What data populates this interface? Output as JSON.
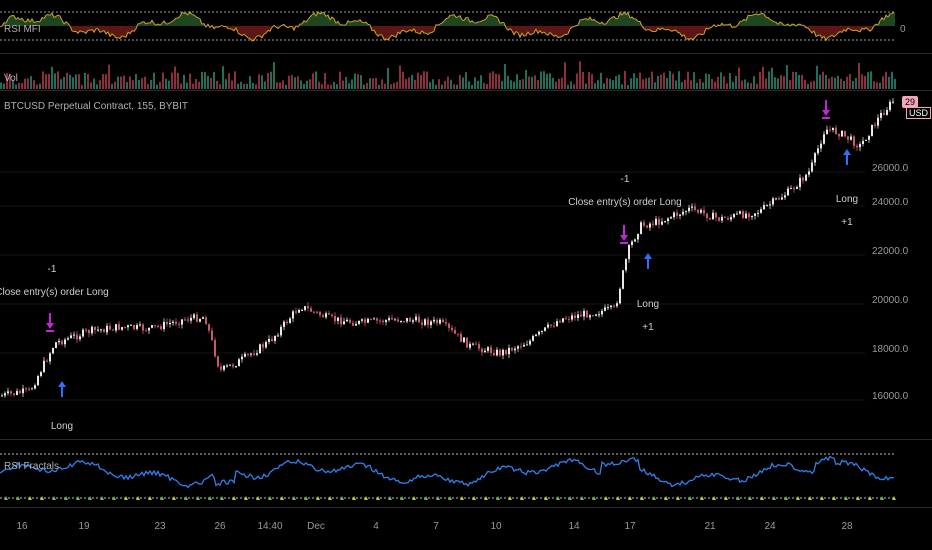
{
  "panes": {
    "rsi_mfi": {
      "label": "RSI MFI",
      "axis_value": "0"
    },
    "volume": {
      "label": "Vol"
    },
    "price": {
      "title": "BTCUSD Perpetual Contract, 155, BYBIT",
      "currency": "USD",
      "last_price_badge": "29",
      "axis_ticks": [
        "26000.0",
        "24000.0",
        "22000.0",
        "20000.0",
        "18000.0",
        "16000.0"
      ]
    },
    "rsi_fractals": {
      "label": "RSI Fractals"
    }
  },
  "annotations": [
    {
      "id": "a1",
      "lines": [
        "-1",
        "Close entry(s) order Long"
      ]
    },
    {
      "id": "a2",
      "lines": [
        "Long"
      ]
    },
    {
      "id": "a3",
      "lines": [
        "-1",
        "Close entry(s) order Long"
      ]
    },
    {
      "id": "a4",
      "lines": [
        "Long",
        "+1"
      ]
    },
    {
      "id": "a5",
      "lines": [
        "Long",
        "+1"
      ]
    }
  ],
  "x_axis": [
    "16",
    "19",
    "23",
    "26",
    "14:40",
    "Dec",
    "4",
    "7",
    "10",
    "14",
    "17",
    "21",
    "24",
    "28"
  ],
  "colors": {
    "up": "#26a69a",
    "down": "#ef5350",
    "candle": "#c85a6a",
    "rsi_line": "#2f80ed",
    "mfi_up": "#4caf50",
    "mfi_down": "#e53935",
    "entry_arrow": "#2f6fff",
    "exit_arrow": "#c026d3"
  }
}
